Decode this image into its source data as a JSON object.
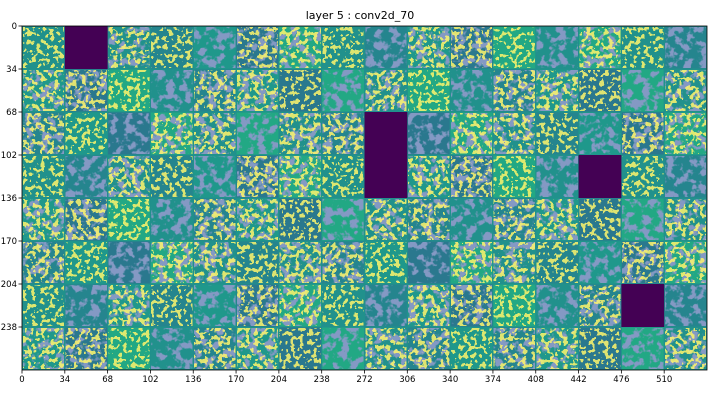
{
  "chart_data": {
    "type": "heatmap",
    "title": "layer 5 : conv2d_70",
    "colormap": "viridis",
    "grid": false,
    "xlim": [
      0,
      544
    ],
    "ylim": [
      272,
      0
    ],
    "tile_size": 34,
    "tile_grid": {
      "rows": 8,
      "cols": 16
    },
    "xticks": [
      0,
      34,
      68,
      102,
      136,
      170,
      204,
      238,
      272,
      306,
      340,
      374,
      408,
      442,
      476,
      510
    ],
    "yticks": [
      0,
      34,
      68,
      102,
      136,
      170,
      204,
      238
    ],
    "dead_channels": [
      {
        "row": 0,
        "col": 1
      },
      {
        "row": 2,
        "col": 8
      },
      {
        "row": 3,
        "col": 8
      },
      {
        "row": 3,
        "col": 13
      },
      {
        "row": 6,
        "col": 14
      }
    ],
    "colors": {
      "dark": "#440154",
      "background": "#21918c",
      "mid_blue": "#3b528b",
      "green": "#5ec962",
      "yellow": "#fde725"
    }
  }
}
